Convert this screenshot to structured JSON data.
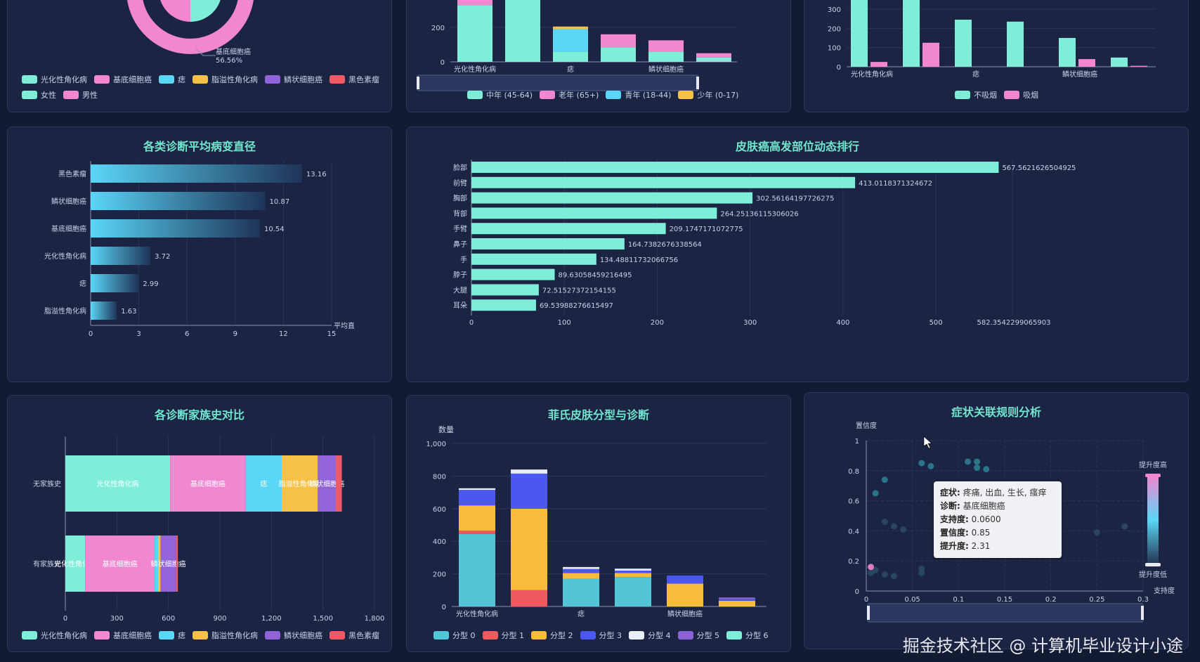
{
  "colors": {
    "diag": [
      "#7eeed9",
      "#f286d1",
      "#5ad6f7",
      "#f7c046",
      "#9165d9",
      "#f05a66"
    ],
    "age": [
      "#7eeed9",
      "#f286d1",
      "#5ad6f7",
      "#f7c046"
    ],
    "smoke": [
      "#7eeed9",
      "#f286d1"
    ],
    "fitz": [
      "#52c6d6",
      "#ef5a5f",
      "#f7bd3a",
      "#4a58f0",
      "#e9eef7",
      "#8a62d5",
      "#7eeed9"
    ]
  },
  "diagnoses": [
    "光化性角化病",
    "基底细胞癌",
    "痣",
    "脂溢性角化病",
    "鳞状细胞癌",
    "黑色素瘤"
  ],
  "gender": {
    "labels": [
      "女性",
      "男性"
    ],
    "callout_name": "基底细胞癌",
    "callout_pct": "56.56%"
  },
  "age_chart": {
    "legend": [
      "中年 (45-64)",
      "老年 (65+)",
      "青年 (18-44)",
      "少年 (0-17)"
    ],
    "xlabels": [
      "光化性角化病",
      "痣",
      "鳞状细胞癌"
    ],
    "yticks": [
      "0",
      "200"
    ]
  },
  "smoke_chart": {
    "legend": [
      "不吸烟",
      "吸烟"
    ],
    "xlabels": [
      "光化性角化病",
      "痣",
      "鳞状细胞癌"
    ],
    "yticks": [
      "0",
      "100",
      "200",
      "300"
    ],
    "values": [
      [
        420,
        25
      ],
      [
        470,
        125
      ],
      [
        245,
        0
      ],
      [
        235,
        0
      ],
      [
        150,
        40
      ],
      [
        48,
        5
      ]
    ]
  },
  "lesion_chart": {
    "title": "各类诊断平均病变直径",
    "xname": "平均直",
    "xticks": [
      "0",
      "3",
      "6",
      "9",
      "12",
      "15"
    ],
    "rows": [
      {
        "name": "黑色素瘤",
        "value": 13.16,
        "label": "13.16"
      },
      {
        "name": "鳞状细胞癌",
        "value": 10.87,
        "label": "10.87"
      },
      {
        "name": "基底细胞癌",
        "value": 10.54,
        "label": "10.54"
      },
      {
        "name": "光化性角化病",
        "value": 3.72,
        "label": "3.72"
      },
      {
        "name": "痣",
        "value": 2.99,
        "label": "2.99"
      },
      {
        "name": "脂溢性角化病",
        "value": 1.63,
        "label": "1.63"
      }
    ]
  },
  "site_chart": {
    "title": "皮肤癌高发部位动态排行",
    "xticks": [
      "0",
      "100",
      "200",
      "300",
      "400",
      "500"
    ],
    "max_label": "582.3542299065903",
    "rows": [
      {
        "name": "脸部",
        "value": 567.5621626504925,
        "label": "567.5621626504925"
      },
      {
        "name": "前臂",
        "value": 413.0118371324672,
        "label": "413.0118371324672"
      },
      {
        "name": "胸部",
        "value": 302.56164197726275,
        "label": "302.56164197726275"
      },
      {
        "name": "背部",
        "value": 264.25136115306026,
        "label": "264.25136115306026"
      },
      {
        "name": "手臂",
        "value": 209.1747171072775,
        "label": "209.1747171072775"
      },
      {
        "name": "鼻子",
        "value": 164.7382676338564,
        "label": "164.7382676338564"
      },
      {
        "name": "手",
        "value": 134.48811732066756,
        "label": "134.48811732066756"
      },
      {
        "name": "脖子",
        "value": 89.63058459216495,
        "label": "89.63058459216495"
      },
      {
        "name": "大腿",
        "value": 72.51527372154155,
        "label": "72.51527372154155"
      },
      {
        "name": "耳朵",
        "value": 69.53988276615497,
        "label": "69.53988276615497"
      }
    ]
  },
  "family_chart": {
    "title": "各诊断家族史对比",
    "categories": [
      "无家族史",
      "有家族史"
    ],
    "xticks": [
      "0",
      "300",
      "600",
      "900",
      "1,200",
      "1,500",
      "1,800"
    ],
    "values": [
      [
        610,
        440,
        210,
        210,
        105,
        35
      ],
      [
        115,
        405,
        20,
        15,
        90,
        10
      ]
    ]
  },
  "fitz_chart": {
    "title": "菲氏皮肤分型与诊断",
    "yname": "数量",
    "yticks": [
      "0",
      "200",
      "400",
      "600",
      "800",
      "1,000"
    ],
    "xlabels": [
      "光化性角化病",
      "痣",
      "鳞状细胞癌"
    ],
    "legend": [
      "分型 0",
      "分型 1",
      "分型 2",
      "分型 3",
      "分型 4",
      "分型 5",
      "分型 6"
    ],
    "stacks": [
      [
        445,
        20,
        155,
        95,
        10,
        0,
        0
      ],
      [
        0,
        100,
        500,
        215,
        25,
        0,
        0
      ],
      [
        170,
        0,
        35,
        25,
        12,
        0,
        0
      ],
      [
        180,
        0,
        25,
        15,
        12,
        0,
        0
      ],
      [
        0,
        0,
        140,
        50,
        0,
        0,
        0
      ],
      [
        0,
        0,
        35,
        10,
        0,
        10,
        0
      ]
    ]
  },
  "rules_chart": {
    "title": "症状关联规则分析",
    "yname": "置信度",
    "xname": "支持度",
    "xticks": [
      "0",
      "0.05",
      "0.1",
      "0.15",
      "0.2",
      "0.25",
      "0.3"
    ],
    "yticks": [
      "0",
      "0.2",
      "0.4",
      "0.6",
      "0.8",
      "1"
    ],
    "vm_high": "提升度高",
    "vm_low": "提升度低",
    "points": [
      [
        0.06,
        0.85
      ],
      [
        0.07,
        0.83
      ],
      [
        0.11,
        0.86
      ],
      [
        0.12,
        0.86
      ],
      [
        0.12,
        0.82
      ],
      [
        0.13,
        0.81
      ],
      [
        0.01,
        0.65
      ],
      [
        0.02,
        0.74
      ],
      [
        0.02,
        0.46
      ],
      [
        0.03,
        0.43
      ],
      [
        0.04,
        0.41
      ],
      [
        0.01,
        0.14
      ],
      [
        0.02,
        0.11
      ],
      [
        0.03,
        0.1
      ],
      [
        0.06,
        0.12
      ],
      [
        0.06,
        0.15
      ],
      [
        0.005,
        0.16
      ],
      [
        0.005,
        0.12
      ],
      [
        0.28,
        0.43
      ],
      [
        0.25,
        0.39
      ]
    ],
    "tooltip": {
      "k1": "症状:",
      "v1": "疼痛, 出血, 生长, 瘙痒",
      "k2": "诊断:",
      "v2": "基底细胞癌",
      "k3": "支持度:",
      "v3": "0.0600",
      "k4": "置信度:",
      "v4": "0.85",
      "k5": "提升度:",
      "v5": "2.31"
    }
  },
  "watermark": "掘金技术社区 @ 计算机毕业设计小途"
}
